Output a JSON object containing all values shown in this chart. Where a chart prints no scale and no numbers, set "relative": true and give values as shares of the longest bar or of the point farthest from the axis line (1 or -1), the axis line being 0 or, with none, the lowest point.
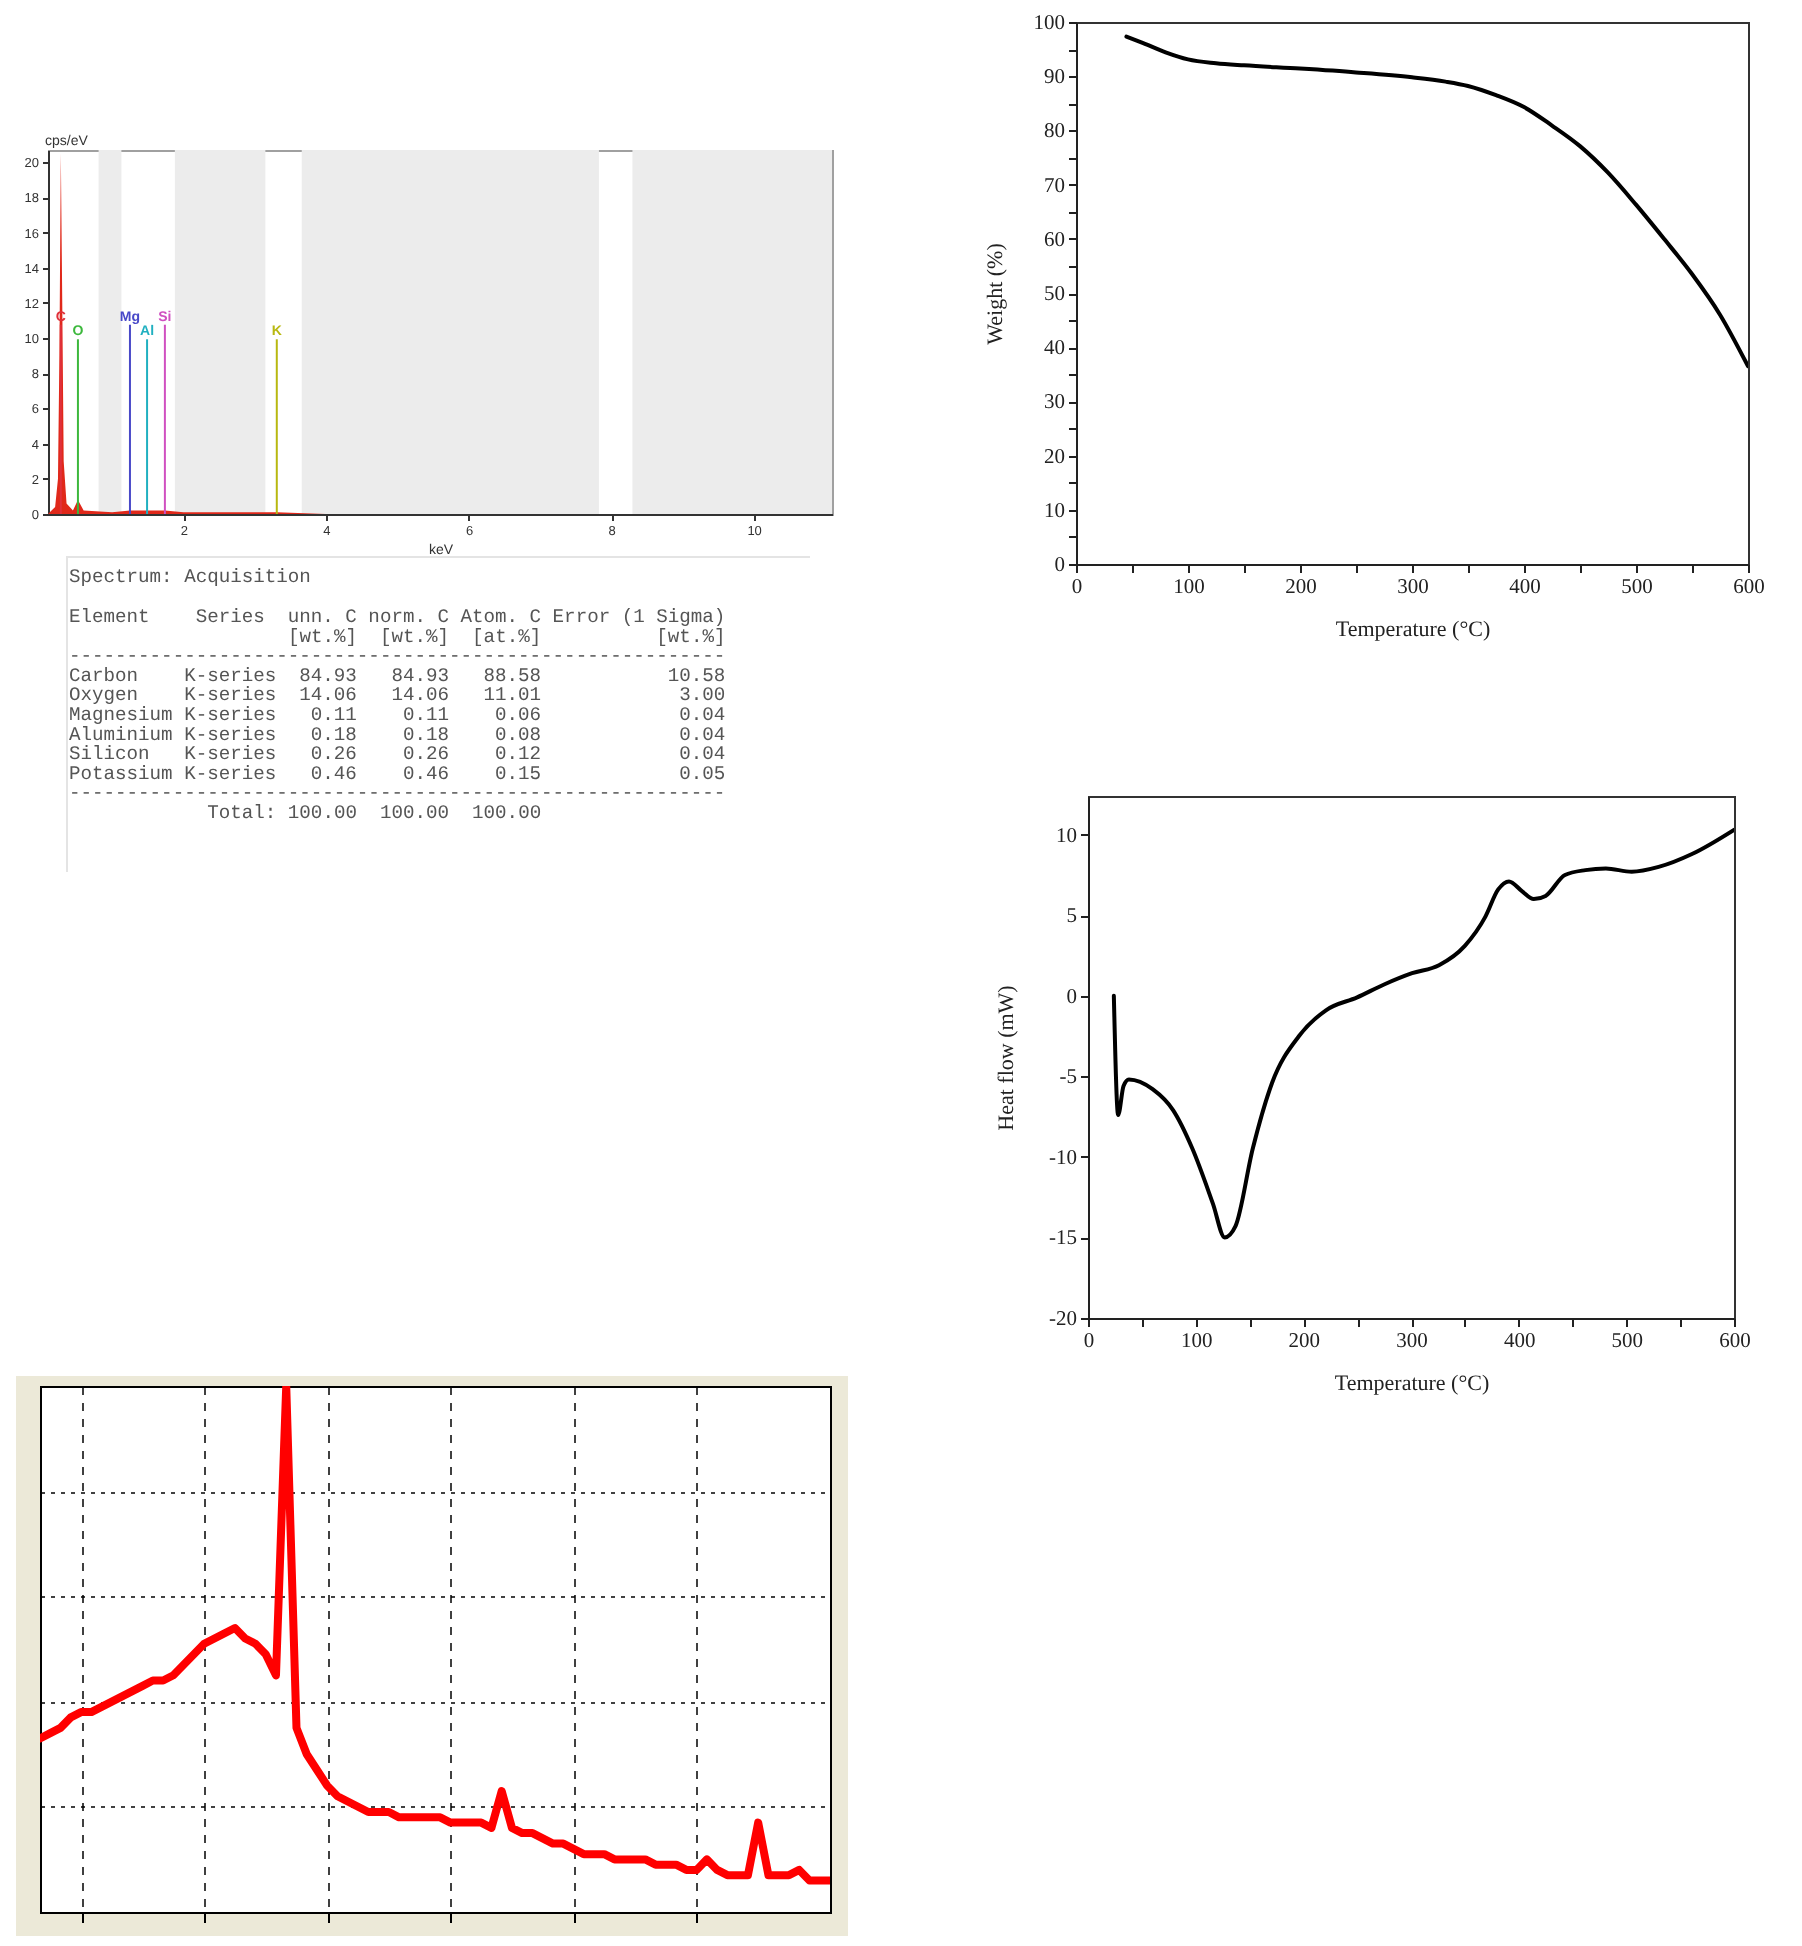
{
  "chart_data": [
    {
      "type": "area",
      "x": [
        0.1,
        0.2,
        0.24,
        0.26,
        0.28,
        0.3,
        0.32,
        0.36,
        0.45,
        0.52,
        0.6,
        1.0,
        1.25,
        1.5,
        1.74,
        2.0,
        3.31,
        4.0,
        11.1
      ],
      "values": [
        0,
        0.4,
        2,
        9,
        20.5,
        12,
        3,
        0.6,
        0.2,
        0.8,
        0.2,
        0.1,
        0.2,
        0.2,
        0.2,
        0.1,
        0.1,
        0,
        0
      ],
      "color": "#e0281a",
      "xlim": [
        0.1,
        11.1
      ],
      "ylim": [
        0,
        20.7
      ],
      "xticks": [
        2,
        4,
        6,
        8,
        10
      ],
      "yticks": [
        0,
        2,
        4,
        6,
        8,
        10,
        12,
        14,
        16,
        18,
        20
      ],
      "xlabel": "keV",
      "ylabel": "cps/eV",
      "bands": [
        {
          "axis": "x",
          "from": 0.81,
          "to": 1.13,
          "color": "#ececec"
        },
        {
          "axis": "x",
          "from": 1.88,
          "to": 3.15,
          "color": "#ececec"
        },
        {
          "axis": "x",
          "from": 3.66,
          "to": 7.83,
          "color": "#ececec"
        },
        {
          "axis": "x",
          "from": 8.3,
          "to": 11.1,
          "color": "#ececec"
        }
      ],
      "ref_lines": [
        {
          "axis": "x",
          "value": 0.28,
          "label": "C",
          "color": "#e0303a"
        },
        {
          "axis": "x",
          "value": 0.52,
          "label": "O",
          "color": "#3cb83c"
        },
        {
          "axis": "x",
          "value": 1.25,
          "label": "Mg",
          "color": "#4848c8"
        },
        {
          "axis": "x",
          "value": 1.49,
          "label": "Al",
          "color": "#20b0c0"
        },
        {
          "axis": "x",
          "value": 1.74,
          "label": "Si",
          "color": "#d050c0"
        },
        {
          "axis": "x",
          "value": 3.31,
          "label": "K",
          "color": "#b8b810"
        }
      ]
    },
    {
      "type": "line",
      "x": [
        45,
        60,
        80,
        100,
        125,
        150,
        200,
        250,
        300,
        330,
        350,
        375,
        400,
        425,
        450,
        475,
        500,
        525,
        550,
        575,
        600
      ],
      "values": [
        97.3,
        96.1,
        94.4,
        93.1,
        92.4,
        92.0,
        91.4,
        90.7,
        89.8,
        89.0,
        88.2,
        86.5,
        84.3,
        80.9,
        77.1,
        72.2,
        66.3,
        60.0,
        53.5,
        46.0,
        36.5
      ],
      "color": "#000000",
      "xlim": [
        0,
        600
      ],
      "ylim": [
        0,
        100
      ],
      "xticks": [
        0,
        {
          "value": 50,
          "label": null
        },
        100,
        {
          "value": 150,
          "label": null
        },
        200,
        {
          "value": 250,
          "label": null
        },
        300,
        {
          "value": 350,
          "label": null
        },
        400,
        {
          "value": 450,
          "label": null
        },
        500,
        {
          "value": 550,
          "label": null
        },
        600
      ],
      "yticks": [
        0,
        {
          "value": 5,
          "label": null
        },
        10,
        {
          "value": 15,
          "label": null
        },
        20,
        {
          "value": 25,
          "label": null
        },
        30,
        {
          "value": 35,
          "label": null
        },
        40,
        {
          "value": 45,
          "label": null
        },
        50,
        {
          "value": 55,
          "label": null
        },
        60,
        {
          "value": 65,
          "label": null
        },
        70,
        {
          "value": 75,
          "label": null
        },
        80,
        {
          "value": 85,
          "label": null
        },
        90,
        {
          "value": 95,
          "label": null
        },
        100
      ],
      "xlabel": "Temperature (°C)",
      "ylabel": "Weight (%)"
    },
    {
      "type": "other",
      "title": "Spectrum: Acquisition",
      "annotations": [
        "Element    Series  unn. C norm. C Atom. C Error (1 Sigma)",
        "                   [wt.%]  [wt.%]  [at.%]          [wt.%]",
        "---------------------------------------------------------",
        "Carbon    K-series  84.93   84.93   88.58           10.58",
        "Oxygen    K-series  14.06   14.06   11.01            3.00",
        "Magnesium K-series   0.11    0.11    0.06            0.04",
        "Aluminium K-series   0.18    0.18    0.08            0.04",
        "Silicon   K-series   0.26    0.26    0.12            0.04",
        "Potassium K-series   0.46    0.46    0.15            0.05",
        "---------------------------------------------------------",
        "            Total: 100.00  100.00  100.00"
      ]
    },
    {
      "type": "line",
      "x": [
        24,
        28,
        33,
        38,
        60,
        79,
        97,
        116,
        127,
        137,
        153,
        171,
        196,
        221,
        250,
        275,
        301,
        326,
        350,
        369,
        381,
        391,
        403,
        414,
        425,
        443,
        462,
        481,
        505,
        530,
        561,
        600
      ],
      "values": [
        0,
        -7.4,
        -5.6,
        -5.2,
        -5.8,
        -7.1,
        -9.5,
        -12.9,
        -15,
        -14.3,
        -9.5,
        -5.4,
        -2.5,
        -0.9,
        -0.1,
        0.7,
        1.4,
        1.9,
        3.1,
        4.9,
        6.6,
        7.1,
        6.5,
        6.0,
        6.2,
        7.5,
        7.8,
        7.9,
        7.7,
        8.0,
        8.8,
        10.3
      ],
      "color": "#000000",
      "xlim": [
        0,
        600
      ],
      "ylim": [
        -20,
        12.4
      ],
      "xticks": [
        0,
        {
          "value": 50,
          "label": null
        },
        100,
        {
          "value": 150,
          "label": null
        },
        200,
        {
          "value": 250,
          "label": null
        },
        300,
        {
          "value": 350,
          "label": null
        },
        400,
        {
          "value": 450,
          "label": null
        },
        500,
        {
          "value": 550,
          "label": null
        },
        600
      ],
      "yticks": [
        -20,
        -15,
        -10,
        -5,
        0,
        5,
        10
      ],
      "xlabel": "Temperature (°C)",
      "ylabel": "Heat flow (mW)"
    },
    {
      "type": "line",
      "relative": true,
      "grid": true,
      "color": "#ff0000",
      "categories": [
        null,
        null,
        null,
        null,
        null,
        null,
        null,
        null,
        null,
        null,
        null,
        null,
        null,
        null,
        null,
        null,
        null,
        null,
        null,
        null,
        null,
        null,
        null,
        null,
        null,
        null,
        null,
        null,
        null,
        null,
        null,
        null,
        null,
        null,
        null,
        null,
        null,
        null,
        null,
        null,
        null,
        null,
        null,
        null,
        null,
        null,
        null,
        null,
        null,
        null,
        null,
        null,
        null,
        null,
        null,
        null,
        null,
        null,
        null,
        null,
        null,
        null,
        null,
        null,
        null,
        null,
        null,
        null,
        null,
        null,
        null,
        null,
        null,
        null,
        null,
        null,
        null,
        null
      ],
      "values": [
        0.33,
        0.34,
        0.35,
        0.37,
        0.38,
        0.38,
        0.39,
        0.4,
        0.41,
        0.42,
        0.43,
        0.44,
        0.44,
        0.45,
        0.47,
        0.49,
        0.51,
        0.52,
        0.53,
        0.54,
        0.52,
        0.51,
        0.49,
        0.45,
        1,
        0.35,
        0.3,
        0.27,
        0.24,
        0.22,
        0.21,
        0.2,
        0.19,
        0.19,
        0.19,
        0.18,
        0.18,
        0.18,
        0.18,
        0.18,
        0.17,
        0.17,
        0.17,
        0.17,
        0.16,
        0.23,
        0.16,
        0.15,
        0.15,
        0.14,
        0.13,
        0.13,
        0.12,
        0.11,
        0.11,
        0.11,
        0.1,
        0.1,
        0.1,
        0.1,
        0.09,
        0.09,
        0.09,
        0.08,
        0.08,
        0.1,
        0.08,
        0.07,
        0.07,
        0.07,
        0.17,
        0.07,
        0.07,
        0.07,
        0.08,
        0.06,
        0.06,
        0.06
      ]
    }
  ]
}
